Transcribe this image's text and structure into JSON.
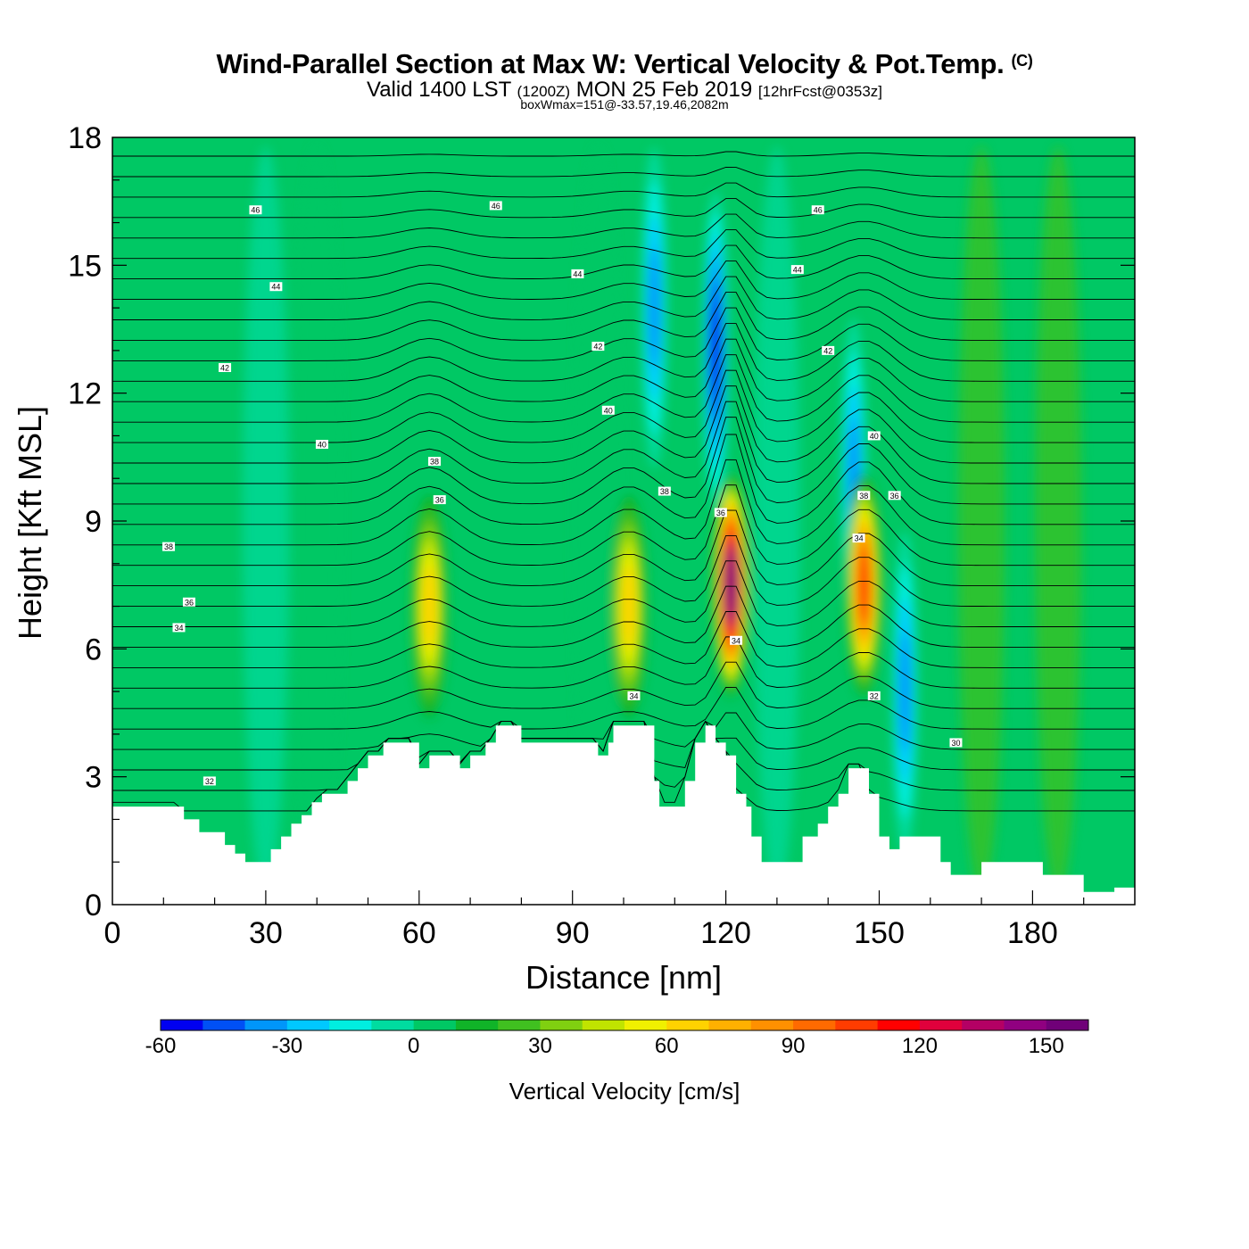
{
  "header": {
    "title": "Wind-Parallel Section at Max W: Vertical Velocity & Pot.Temp.",
    "copyright": "(C)",
    "valid_prefix": "Valid 1400 LST",
    "valid_utc": "(1200Z)",
    "valid_date": "MON 25 Feb 2019",
    "forecast": "[12hrFcst@0353z]",
    "box_wmax": "boxWmax=151@-33.57,19.46,2082m"
  },
  "chart_data": {
    "type": "heatmap",
    "xlabel": "Distance [nm]",
    "ylabel": "Height [Kft MSL]",
    "xlim": [
      0,
      200
    ],
    "ylim": [
      0,
      18
    ],
    "xticks": [
      0,
      30,
      60,
      90,
      120,
      150,
      180
    ],
    "yticks": [
      0,
      3,
      6,
      9,
      12,
      15,
      18
    ],
    "colorbar": {
      "title": "Vertical Velocity [cm/s]",
      "min": -60,
      "max": 160,
      "step": 10,
      "tick_values": [
        -60,
        -30,
        0,
        30,
        60,
        90,
        120,
        150
      ],
      "colors": [
        "#0000f0",
        "#0050f5",
        "#0096fa",
        "#00c8ff",
        "#00eee0",
        "#00dca0",
        "#00c864",
        "#10b428",
        "#40c020",
        "#80d010",
        "#c0e400",
        "#f0f000",
        "#ffd200",
        "#ffb000",
        "#ff9000",
        "#ff6a00",
        "#ff3c00",
        "#ff0000",
        "#e0003c",
        "#b40064",
        "#900080",
        "#700078"
      ]
    },
    "terrain_kft": [
      [
        0,
        2.3
      ],
      [
        12,
        2.3
      ],
      [
        14,
        2.0
      ],
      [
        17,
        1.7
      ],
      [
        20,
        1.7
      ],
      [
        22,
        1.4
      ],
      [
        24,
        1.2
      ],
      [
        26,
        1.0
      ],
      [
        29,
        1.0
      ],
      [
        31,
        1.3
      ],
      [
        33,
        1.6
      ],
      [
        35,
        1.9
      ],
      [
        37,
        2.1
      ],
      [
        39,
        2.4
      ],
      [
        41,
        2.6
      ],
      [
        44,
        2.6
      ],
      [
        46,
        2.9
      ],
      [
        48,
        3.2
      ],
      [
        50,
        3.5
      ],
      [
        53,
        3.8
      ],
      [
        58,
        3.8
      ],
      [
        60,
        3.2
      ],
      [
        62,
        3.5
      ],
      [
        66,
        3.5
      ],
      [
        68,
        3.2
      ],
      [
        70,
        3.5
      ],
      [
        73,
        3.8
      ],
      [
        75,
        4.2
      ],
      [
        78,
        4.2
      ],
      [
        80,
        3.8
      ],
      [
        93,
        3.8
      ],
      [
        95,
        3.5
      ],
      [
        97,
        3.8
      ],
      [
        98,
        4.2
      ],
      [
        104,
        4.2
      ],
      [
        106,
        2.9
      ],
      [
        107,
        2.3
      ],
      [
        110,
        2.3
      ],
      [
        112,
        2.9
      ],
      [
        114,
        3.8
      ],
      [
        116,
        4.2
      ],
      [
        118,
        3.8
      ],
      [
        120,
        3.5
      ],
      [
        122,
        2.6
      ],
      [
        124,
        2.3
      ],
      [
        125,
        1.6
      ],
      [
        127,
        1.0
      ],
      [
        133,
        1.0
      ],
      [
        135,
        1.6
      ],
      [
        138,
        1.9
      ],
      [
        140,
        2.3
      ],
      [
        142,
        2.6
      ],
      [
        144,
        3.2
      ],
      [
        146,
        3.2
      ],
      [
        148,
        2.6
      ],
      [
        150,
        1.6
      ],
      [
        152,
        1.3
      ],
      [
        154,
        1.6
      ],
      [
        160,
        1.6
      ],
      [
        162,
        1.0
      ],
      [
        164,
        0.7
      ],
      [
        168,
        0.7
      ],
      [
        170,
        1.0
      ],
      [
        180,
        1.0
      ],
      [
        182,
        0.7
      ],
      [
        188,
        0.7
      ],
      [
        190,
        0.3
      ],
      [
        194,
        0.3
      ],
      [
        196,
        0.4
      ],
      [
        200,
        0.4
      ]
    ],
    "updrafts": [
      {
        "x": 62,
        "z": 7.0,
        "peak_cm_s": 60
      },
      {
        "x": 101,
        "z": 7.0,
        "peak_cm_s": 60
      },
      {
        "x": 121,
        "z": 7.5,
        "peak_cm_s": 151
      },
      {
        "x": 147,
        "z": 7.5,
        "peak_cm_s": 100
      }
    ],
    "downdrafts": [
      {
        "x": 106,
        "z": 14.0,
        "peak_cm_s": -40
      },
      {
        "x": 118,
        "z": 13.0,
        "peak_cm_s": -60
      },
      {
        "x": 145,
        "z": 10.0,
        "peak_cm_s": -40
      },
      {
        "x": 155,
        "z": 5.0,
        "peak_cm_s": -40
      }
    ],
    "theta_contour_labels": [
      {
        "x": 28,
        "z": 16.3,
        "value": "46"
      },
      {
        "x": 75,
        "z": 16.4,
        "value": "46"
      },
      {
        "x": 138,
        "z": 16.3,
        "value": "46"
      },
      {
        "x": 32,
        "z": 14.5,
        "value": "44"
      },
      {
        "x": 91,
        "z": 14.8,
        "value": "44"
      },
      {
        "x": 134,
        "z": 14.9,
        "value": "44"
      },
      {
        "x": 22,
        "z": 12.6,
        "value": "42"
      },
      {
        "x": 95,
        "z": 13.1,
        "value": "42"
      },
      {
        "x": 140,
        "z": 13.0,
        "value": "42"
      },
      {
        "x": 41,
        "z": 10.8,
        "value": "40"
      },
      {
        "x": 97,
        "z": 11.6,
        "value": "40"
      },
      {
        "x": 149,
        "z": 11.0,
        "value": "40"
      },
      {
        "x": 63,
        "z": 10.4,
        "value": "38"
      },
      {
        "x": 108,
        "z": 9.7,
        "value": "38"
      },
      {
        "x": 11,
        "z": 8.4,
        "value": "38"
      },
      {
        "x": 64,
        "z": 9.5,
        "value": "36"
      },
      {
        "x": 15,
        "z": 7.1,
        "value": "36"
      },
      {
        "x": 153,
        "z": 9.6,
        "value": "36"
      },
      {
        "x": 119,
        "z": 9.2,
        "value": "36"
      },
      {
        "x": 147,
        "z": 9.6,
        "value": "38"
      },
      {
        "x": 13,
        "z": 6.5,
        "value": "34"
      },
      {
        "x": 102,
        "z": 4.9,
        "value": "34"
      },
      {
        "x": 122,
        "z": 6.2,
        "value": "34"
      },
      {
        "x": 146,
        "z": 8.6,
        "value": "34"
      },
      {
        "x": 19,
        "z": 2.9,
        "value": "32"
      },
      {
        "x": 149,
        "z": 4.9,
        "value": "32"
      },
      {
        "x": 165,
        "z": 3.8,
        "value": "30"
      }
    ]
  }
}
